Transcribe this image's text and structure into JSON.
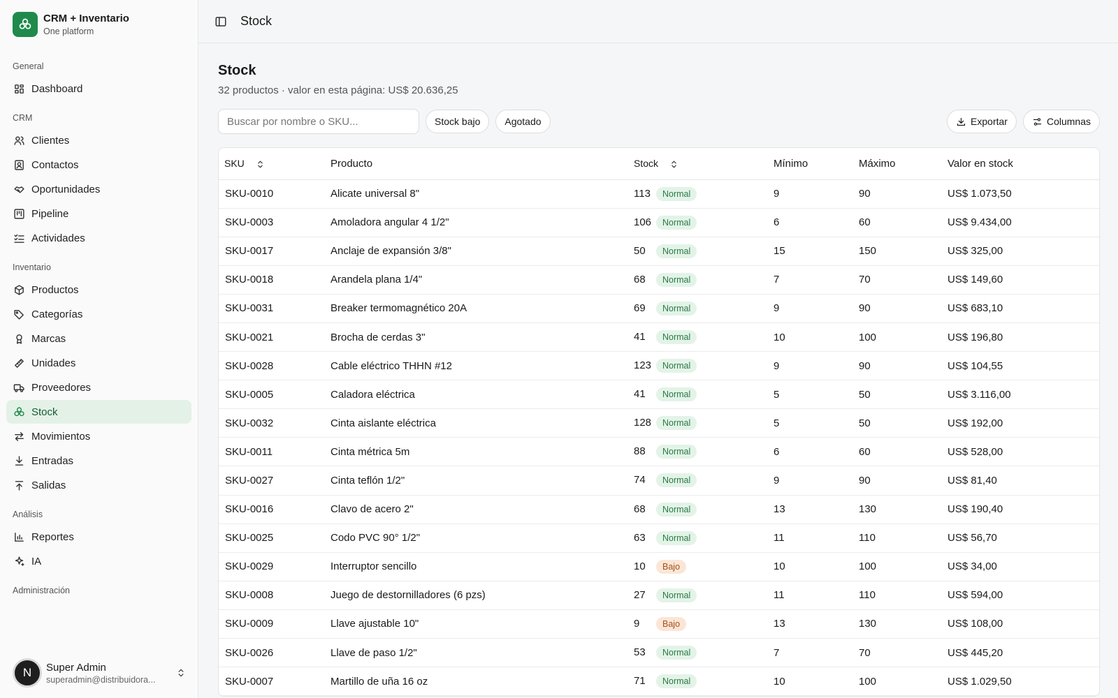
{
  "brand": {
    "title": "CRM + Inventario",
    "subtitle": "One platform"
  },
  "sidebar": {
    "groups": [
      {
        "label": "General",
        "items": [
          {
            "label": "Dashboard",
            "icon": "dashboard-icon"
          }
        ]
      },
      {
        "label": "CRM",
        "items": [
          {
            "label": "Clientes",
            "icon": "users-icon"
          },
          {
            "label": "Contactos",
            "icon": "contact-card-icon"
          },
          {
            "label": "Oportunidades",
            "icon": "handshake-icon"
          },
          {
            "label": "Pipeline",
            "icon": "kanban-icon"
          },
          {
            "label": "Actividades",
            "icon": "checklist-icon"
          }
        ]
      },
      {
        "label": "Inventario",
        "items": [
          {
            "label": "Productos",
            "icon": "box-icon"
          },
          {
            "label": "Categorías",
            "icon": "tags-icon"
          },
          {
            "label": "Marcas",
            "icon": "award-icon"
          },
          {
            "label": "Unidades",
            "icon": "ruler-icon"
          },
          {
            "label": "Proveedores",
            "icon": "truck-icon"
          },
          {
            "label": "Stock",
            "icon": "boxes-icon",
            "active": true
          },
          {
            "label": "Movimientos",
            "icon": "arrows-exchange-icon"
          },
          {
            "label": "Entradas",
            "icon": "download-icon"
          },
          {
            "label": "Salidas",
            "icon": "upload-icon"
          }
        ]
      },
      {
        "label": "Análisis",
        "items": [
          {
            "label": "Reportes",
            "icon": "bar-chart-icon"
          },
          {
            "label": "IA",
            "icon": "sparkles-icon"
          }
        ]
      },
      {
        "label": "Administración",
        "items": []
      }
    ]
  },
  "user": {
    "initial": "N",
    "name": "Super Admin",
    "email": "superadmin@distribuidora..."
  },
  "topbar": {
    "title": "Stock"
  },
  "page": {
    "title": "Stock",
    "subtitle": "32 productos · valor en esta página: US$ 20.636,25"
  },
  "toolbar": {
    "search_placeholder": "Buscar por nombre o SKU...",
    "filter_low": "Stock bajo",
    "filter_out": "Agotado",
    "export_label": "Exportar",
    "columns_label": "Columnas"
  },
  "table": {
    "headers": {
      "sku": "SKU",
      "product": "Producto",
      "stock": "Stock",
      "min": "Mínimo",
      "max": "Máximo",
      "value": "Valor en stock"
    },
    "rows": [
      {
        "sku": "SKU-0010",
        "product": "Alicate universal 8\"",
        "stock": "113",
        "status": "Normal",
        "min": "9",
        "max": "90",
        "value": "US$ 1.073,50"
      },
      {
        "sku": "SKU-0003",
        "product": "Amoladora angular 4 1/2\"",
        "stock": "106",
        "status": "Normal",
        "min": "6",
        "max": "60",
        "value": "US$ 9.434,00"
      },
      {
        "sku": "SKU-0017",
        "product": "Anclaje de expansión 3/8\"",
        "stock": "50",
        "status": "Normal",
        "min": "15",
        "max": "150",
        "value": "US$ 325,00"
      },
      {
        "sku": "SKU-0018",
        "product": "Arandela plana 1/4\"",
        "stock": "68",
        "status": "Normal",
        "min": "7",
        "max": "70",
        "value": "US$ 149,60"
      },
      {
        "sku": "SKU-0031",
        "product": "Breaker termomagnético 20A",
        "stock": "69",
        "status": "Normal",
        "min": "9",
        "max": "90",
        "value": "US$ 683,10"
      },
      {
        "sku": "SKU-0021",
        "product": "Brocha de cerdas 3\"",
        "stock": "41",
        "status": "Normal",
        "min": "10",
        "max": "100",
        "value": "US$ 196,80"
      },
      {
        "sku": "SKU-0028",
        "product": "Cable eléctrico THHN #12",
        "stock": "123",
        "status": "Normal",
        "min": "9",
        "max": "90",
        "value": "US$ 104,55"
      },
      {
        "sku": "SKU-0005",
        "product": "Caladora eléctrica",
        "stock": "41",
        "status": "Normal",
        "min": "5",
        "max": "50",
        "value": "US$ 3.116,00"
      },
      {
        "sku": "SKU-0032",
        "product": "Cinta aislante eléctrica",
        "stock": "128",
        "status": "Normal",
        "min": "5",
        "max": "50",
        "value": "US$ 192,00"
      },
      {
        "sku": "SKU-0011",
        "product": "Cinta métrica 5m",
        "stock": "88",
        "status": "Normal",
        "min": "6",
        "max": "60",
        "value": "US$ 528,00"
      },
      {
        "sku": "SKU-0027",
        "product": "Cinta teflón 1/2\"",
        "stock": "74",
        "status": "Normal",
        "min": "9",
        "max": "90",
        "value": "US$ 81,40"
      },
      {
        "sku": "SKU-0016",
        "product": "Clavo de acero 2\"",
        "stock": "68",
        "status": "Normal",
        "min": "13",
        "max": "130",
        "value": "US$ 190,40"
      },
      {
        "sku": "SKU-0025",
        "product": "Codo PVC 90° 1/2\"",
        "stock": "63",
        "status": "Normal",
        "min": "11",
        "max": "110",
        "value": "US$ 56,70"
      },
      {
        "sku": "SKU-0029",
        "product": "Interruptor sencillo",
        "stock": "10",
        "status": "Bajo",
        "min": "10",
        "max": "100",
        "value": "US$ 34,00"
      },
      {
        "sku": "SKU-0008",
        "product": "Juego de destornilladores (6 pzs)",
        "stock": "27",
        "status": "Normal",
        "min": "11",
        "max": "110",
        "value": "US$ 594,00"
      },
      {
        "sku": "SKU-0009",
        "product": "Llave ajustable 10\"",
        "stock": "9",
        "status": "Bajo",
        "min": "13",
        "max": "130",
        "value": "US$ 108,00"
      },
      {
        "sku": "SKU-0026",
        "product": "Llave de paso 1/2\"",
        "stock": "53",
        "status": "Normal",
        "min": "7",
        "max": "70",
        "value": "US$ 445,20"
      },
      {
        "sku": "SKU-0007",
        "product": "Martillo de uña 16 oz",
        "stock": "71",
        "status": "Normal",
        "min": "10",
        "max": "100",
        "value": "US$ 1.029,50"
      }
    ]
  },
  "colors": {
    "accent": "#1f8a4c",
    "active_bg": "#e4f1e7",
    "badge_normal": "#e3f3e8",
    "badge_low": "#fbe6d6"
  }
}
